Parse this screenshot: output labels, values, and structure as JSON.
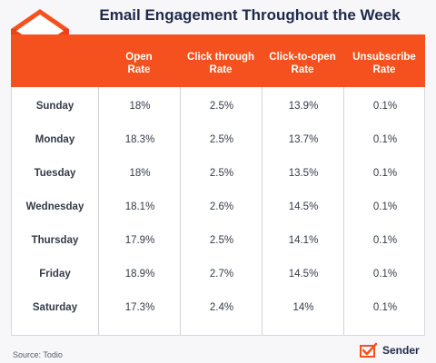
{
  "title": "Email Engagement Throughout the Week",
  "source": "Source: Todio",
  "brand": {
    "name": "Sender",
    "logo_icon": "sender-checkmark-logo"
  },
  "decoration": {
    "icon": "envelope-cursor-icon",
    "accent_color": "#f4511e"
  },
  "colors": {
    "header_bg": "#f4511e",
    "header_text": "#ffffff",
    "title": "#1e2a4a"
  },
  "chart_data": {
    "type": "table",
    "title": "Email Engagement Throughout the Week",
    "columns": [
      "",
      "Open Rate",
      "Click through Rate",
      "Click-to-open Rate",
      "Unsubscribe Rate"
    ],
    "header_lines": [
      [
        "Open",
        "Rate"
      ],
      [
        "Click through",
        "Rate"
      ],
      [
        "Click-to-open",
        "Rate"
      ],
      [
        "Unsubscribe",
        "Rate"
      ]
    ],
    "rows": [
      {
        "day": "Sunday",
        "values": [
          "18%",
          "2.5%",
          "13.9%",
          "0.1%"
        ]
      },
      {
        "day": "Monday",
        "values": [
          "18.3%",
          "2.5%",
          "13.7%",
          "0.1%"
        ]
      },
      {
        "day": "Tuesday",
        "values": [
          "18%",
          "2.5%",
          "13.5%",
          "0.1%"
        ]
      },
      {
        "day": "Wednesday",
        "values": [
          "18.1%",
          "2.6%",
          "14.5%",
          "0.1%"
        ]
      },
      {
        "day": "Thursday",
        "values": [
          "17.9%",
          "2.5%",
          "14.1%",
          "0.1%"
        ]
      },
      {
        "day": "Friday",
        "values": [
          "18.9%",
          "2.7%",
          "14.5%",
          "0.1%"
        ]
      },
      {
        "day": "Saturday",
        "values": [
          "17.3%",
          "2.4%",
          "14%",
          "0.1%"
        ]
      }
    ]
  }
}
